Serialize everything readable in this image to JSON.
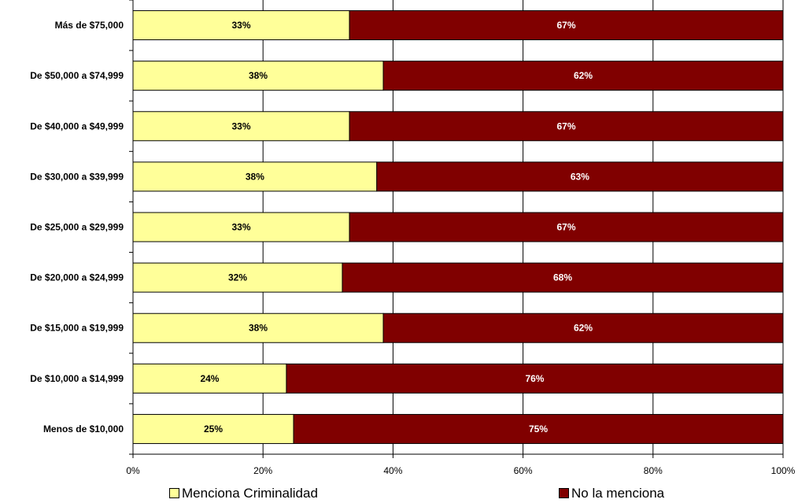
{
  "chart_data": {
    "type": "bar",
    "orientation": "horizontal",
    "stacked": true,
    "title": "",
    "xlabel": "",
    "ylabel": "",
    "xlim": [
      0,
      100
    ],
    "x_ticks": [
      "0%",
      "20%",
      "40%",
      "60%",
      "80%",
      "100%"
    ],
    "grid": true,
    "legend_position": "bottom",
    "categories": [
      "Más de $75,000",
      "De $50,000 a $74,999",
      "De $40,000 a $49,999",
      "De $30,000 a $39,999",
      "De $25,000 a $29,999",
      "De $20,000 a $24,999",
      "De $15,000 a $19,999",
      "De $10,000 a $14,999",
      "Menos de $10,000"
    ],
    "series": [
      {
        "name": "Menciona Criminalidad",
        "color": "#FFFF99",
        "label_color": "#000000",
        "values": [
          33.3,
          38.5,
          33.3,
          37.5,
          33.3,
          32.2,
          38.5,
          23.6,
          24.7
        ],
        "labels": [
          "33%",
          "38%",
          "33%",
          "38%",
          "33%",
          "32%",
          "38%",
          "24%",
          "25%"
        ]
      },
      {
        "name": "No la menciona",
        "color": "#800000",
        "label_color": "#FFFFFF",
        "values": [
          66.7,
          61.5,
          66.7,
          62.5,
          66.7,
          67.8,
          61.5,
          76.4,
          75.3
        ],
        "labels": [
          "67%",
          "62%",
          "67%",
          "63%",
          "67%",
          "68%",
          "62%",
          "76%",
          "75%"
        ]
      }
    ]
  }
}
